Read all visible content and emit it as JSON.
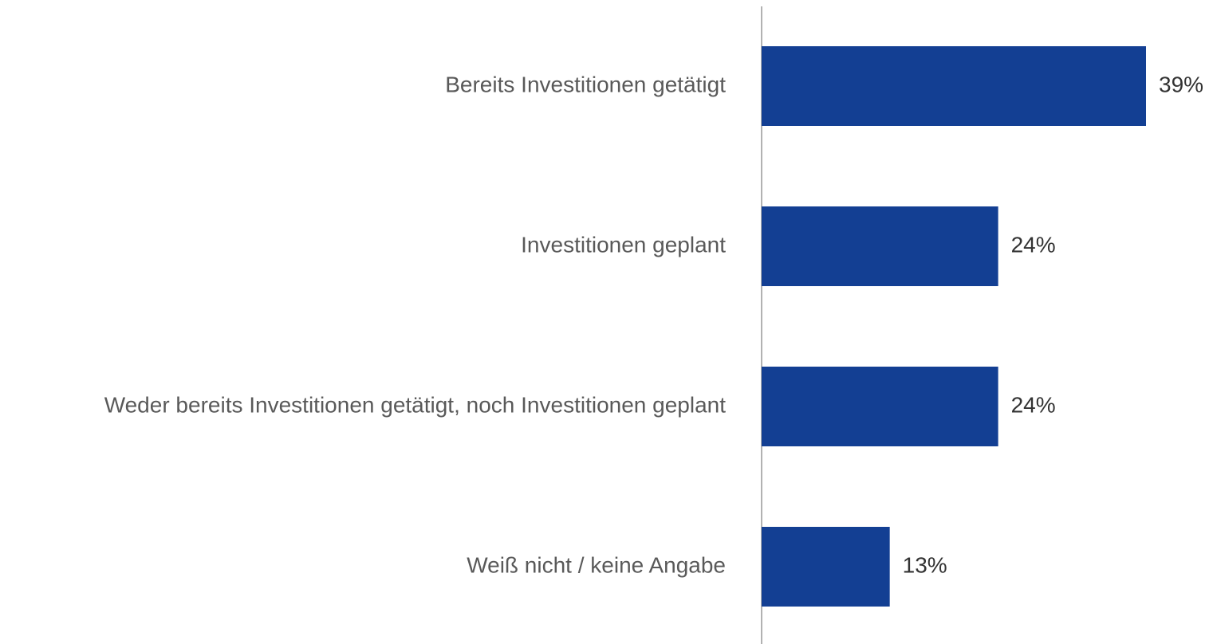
{
  "chart_data": {
    "type": "hbar",
    "categories": [
      "Bereits Investitionen getätigt",
      "Investitionen geplant",
      "Weder bereits Investitionen getätigt, noch Investitionen geplant",
      "Weiß nicht / keine Angabe"
    ],
    "values": [
      39,
      24,
      24,
      13
    ],
    "value_labels": [
      "39%",
      "24%",
      "24%",
      "13%"
    ],
    "color": "#133f93"
  }
}
